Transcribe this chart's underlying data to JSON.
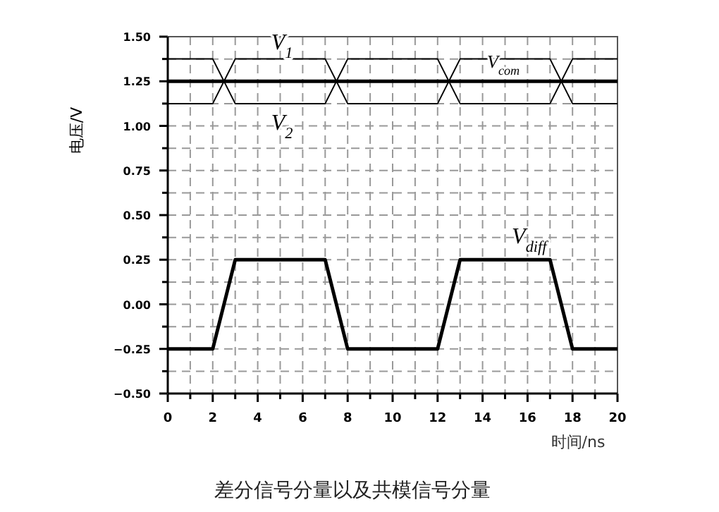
{
  "chart_data": {
    "type": "line",
    "title": "差分信号分量以及共模信号分量",
    "xlabel": "时间/ns",
    "ylabel": "电压/V",
    "x": [
      0,
      2,
      3,
      7,
      8,
      12,
      13,
      17,
      18,
      20
    ],
    "series": [
      {
        "name": "V$_{1}$",
        "color": "#000000",
        "values": [
          1.125,
          1.125,
          1.375,
          1.375,
          1.125,
          1.125,
          1.375,
          1.375,
          1.125,
          1.125
        ]
      },
      {
        "name": "V$_{2}$",
        "color": "#000000",
        "values": [
          1.375,
          1.375,
          1.125,
          1.125,
          1.375,
          1.375,
          1.125,
          1.125,
          1.375,
          1.375
        ]
      },
      {
        "name": "V$_{com}$",
        "color": "#000000",
        "values": [
          1.25,
          1.25,
          1.25,
          1.25,
          1.25,
          1.25,
          1.25,
          1.25,
          1.25,
          1.25
        ]
      },
      {
        "name": "V$_{diff}$",
        "color": "#000000",
        "values": [
          -0.25,
          -0.25,
          0.25,
          0.25,
          -0.25,
          -0.25,
          0.25,
          0.25,
          -0.25,
          -0.25
        ]
      }
    ],
    "xlim": [
      0,
      20
    ],
    "ylim": [
      -0.5,
      1.5
    ],
    "xticks": [
      0,
      {
        "value": 1,
        "label": null
      },
      2,
      {
        "value": 3,
        "label": null
      },
      4,
      {
        "value": 5,
        "label": null
      },
      6,
      {
        "value": 7,
        "label": null
      },
      8,
      {
        "value": 9,
        "label": null
      },
      10,
      {
        "value": 11,
        "label": null
      },
      12,
      {
        "value": 13,
        "label": null
      },
      14,
      {
        "value": 15,
        "label": null
      },
      16,
      {
        "value": 17,
        "label": null
      },
      18,
      {
        "value": 19,
        "label": null
      },
      20
    ],
    "yticks": [
      {
        "value": -0.5,
        "label": "−0.50"
      },
      {
        "value": -0.375,
        "label": null
      },
      {
        "value": -0.25,
        "label": "−0.25"
      },
      {
        "value": -0.125,
        "label": null
      },
      {
        "value": 0,
        "label": "0.00"
      },
      {
        "value": 0.125,
        "label": null
      },
      {
        "value": 0.25,
        "label": "0.25"
      },
      {
        "value": 0.375,
        "label": null
      },
      {
        "value": 0.5,
        "label": "0.50"
      },
      {
        "value": 0.625,
        "label": null
      },
      {
        "value": 0.75,
        "label": "0.75"
      },
      {
        "value": 0.875,
        "label": null
      },
      {
        "value": 1,
        "label": "1.00"
      },
      {
        "value": 1.125,
        "label": null
      },
      {
        "value": 1.25,
        "label": "1.25"
      },
      {
        "value": 1.375,
        "label": null
      },
      {
        "value": 1.5,
        "label": "1.50"
      }
    ],
    "grid": true,
    "legend": false,
    "marker": "none",
    "line_style": "solid"
  }
}
